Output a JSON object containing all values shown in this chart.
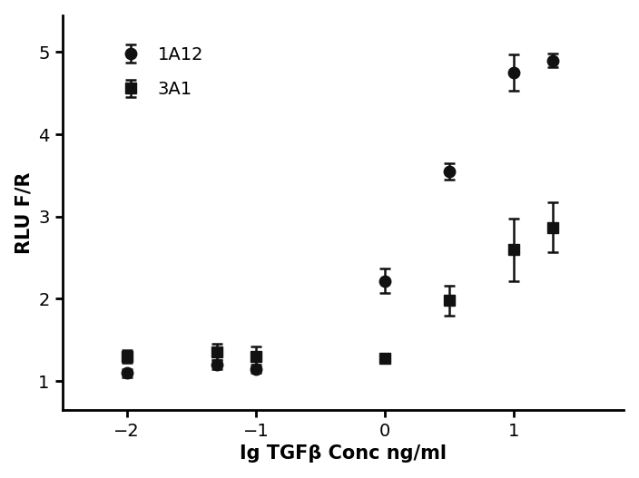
{
  "title": "",
  "xlabel": "Ig TGFβ Conc ng/ml",
  "ylabel": "RLU F/R",
  "xlim": [
    -2.5,
    1.85
  ],
  "ylim": [
    0.65,
    5.45
  ],
  "xticks": [
    -2,
    -1,
    0,
    1
  ],
  "yticks": [
    1,
    2,
    3,
    4,
    5
  ],
  "series_1A12": {
    "label": "1A12",
    "x": [
      -2.0,
      -1.3,
      -1.0,
      0.0,
      0.5,
      1.0,
      1.3
    ],
    "y": [
      1.1,
      1.2,
      1.15,
      2.22,
      3.55,
      4.75,
      4.9
    ],
    "yerr": [
      0.05,
      0.05,
      0.05,
      0.15,
      0.1,
      0.22,
      0.08
    ],
    "marker": "o",
    "color": "#111111",
    "markersize": 9,
    "fit_p0": [
      1.1,
      5.1,
      0.3,
      1.5
    ]
  },
  "series_3A1": {
    "label": "3A1",
    "x": [
      -2.0,
      -1.3,
      -1.0,
      0.0,
      0.5,
      1.0,
      1.3
    ],
    "y": [
      1.3,
      1.35,
      1.3,
      1.28,
      1.98,
      2.6,
      2.87
    ],
    "yerr": [
      0.08,
      0.1,
      0.12,
      0.05,
      0.18,
      0.38,
      0.3
    ],
    "marker": "s",
    "color": "#111111",
    "markersize": 9,
    "fit_p0": [
      1.28,
      3.2,
      0.7,
      1.5
    ]
  },
  "line_color": "#111111",
  "background_color": "#ffffff",
  "font_family": "Arial",
  "axis_linewidth": 2.0,
  "legend_fontsize": 14,
  "tick_fontsize": 14,
  "label_fontsize": 15
}
